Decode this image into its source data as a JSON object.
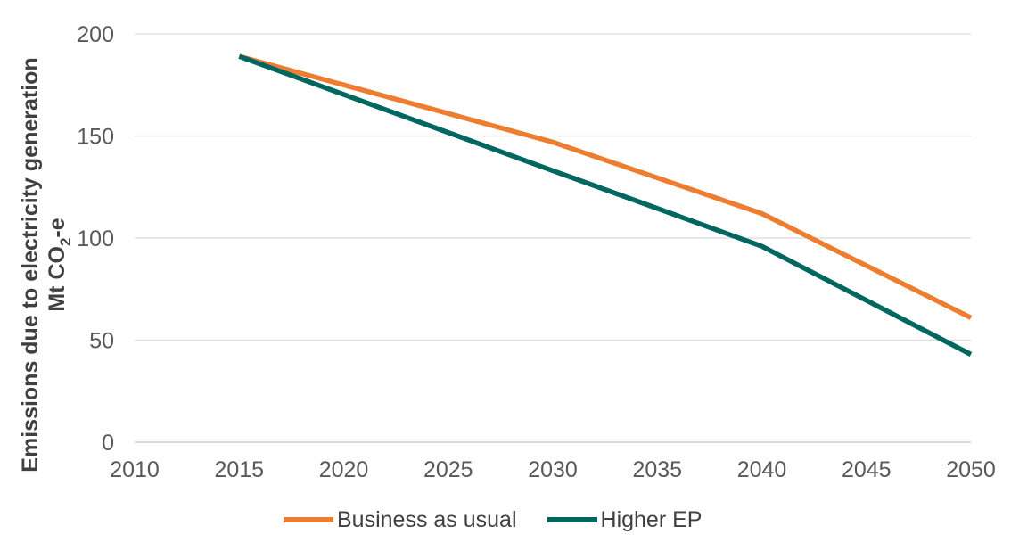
{
  "chart_data": {
    "type": "line",
    "x": [
      2015,
      2030,
      2040,
      2050
    ],
    "series": [
      {
        "name": "Business as usual",
        "color": "#ED7D31",
        "values": [
          189,
          147,
          112,
          61
        ]
      },
      {
        "name": "Higher EP",
        "color": "#006660",
        "values": [
          189,
          133,
          96,
          43
        ]
      }
    ],
    "xlim": [
      2010,
      2050
    ],
    "ylim": [
      0,
      200
    ],
    "xticks": [
      2010,
      2015,
      2020,
      2025,
      2030,
      2035,
      2040,
      2045,
      2050
    ],
    "yticks": [
      0,
      50,
      100,
      150,
      200
    ],
    "ylabel_line1": "Emissions due to electricity generation",
    "ylabel_line2_pre": "Mt CO",
    "ylabel_line2_sub": "2",
    "ylabel_line2_post": "-e",
    "xlabel": "",
    "title": "",
    "grid": "horizontal",
    "legend_position": "bottom"
  }
}
